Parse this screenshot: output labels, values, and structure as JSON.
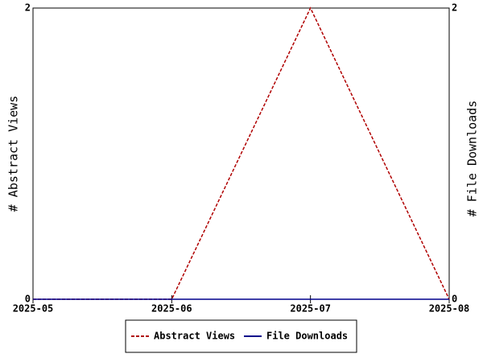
{
  "chart_data": {
    "type": "line",
    "categories": [
      "2025-05",
      "2025-06",
      "2025-07",
      "2025-08"
    ],
    "y_label": "# Abstract Views",
    "y2_label": "# File Downloads",
    "series": [
      {
        "name": "Abstract Views",
        "color": "#b00000",
        "dash": true,
        "values": [
          0,
          0,
          2,
          0
        ]
      },
      {
        "name": "File Downloads",
        "color": "#00008b",
        "dash": false,
        "axis": "y2",
        "values": [
          0,
          0,
          0,
          0
        ]
      }
    ],
    "ylim": [
      0,
      2
    ],
    "yticks": [
      0,
      2
    ],
    "y2lim": [
      0,
      2
    ],
    "y2ticks": [
      0,
      2
    ],
    "grid": false,
    "legend": "bottom"
  }
}
